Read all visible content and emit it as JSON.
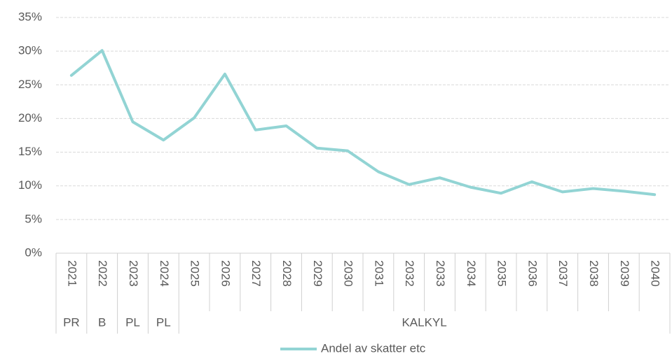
{
  "chart_data": {
    "type": "line",
    "categories": [
      "2021",
      "2022",
      "2023",
      "2024",
      "2025",
      "2026",
      "2027",
      "2028",
      "2029",
      "2030",
      "2031",
      "2032",
      "2033",
      "2034",
      "2035",
      "2036",
      "2037",
      "2038",
      "2039",
      "2040"
    ],
    "groups": [
      {
        "label": "PR",
        "count": 1
      },
      {
        "label": "B",
        "count": 1
      },
      {
        "label": "PL",
        "count": 1
      },
      {
        "label": "PL",
        "count": 1
      },
      {
        "label": "KALKYL",
        "count": 16
      }
    ],
    "series": [
      {
        "name": "Andel av skatter etc",
        "color": "#92d4d4",
        "values": [
          26.4,
          30.1,
          19.5,
          16.8,
          20.1,
          26.6,
          18.3,
          18.9,
          15.6,
          15.2,
          12.1,
          10.2,
          11.2,
          9.8,
          8.9,
          10.6,
          9.1,
          9.6,
          9.2,
          8.7
        ]
      }
    ],
    "ylim": [
      0,
      35
    ],
    "yticks": [
      {
        "value": 0,
        "label": "0%"
      },
      {
        "value": 5,
        "label": "5%"
      },
      {
        "value": 10,
        "label": "10%"
      },
      {
        "value": 15,
        "label": "15%"
      },
      {
        "value": 20,
        "label": "20%"
      },
      {
        "value": 25,
        "label": "25%"
      },
      {
        "value": 30,
        "label": "30%"
      },
      {
        "value": 35,
        "label": "35%"
      }
    ],
    "grid": true,
    "legend": "bottom"
  }
}
